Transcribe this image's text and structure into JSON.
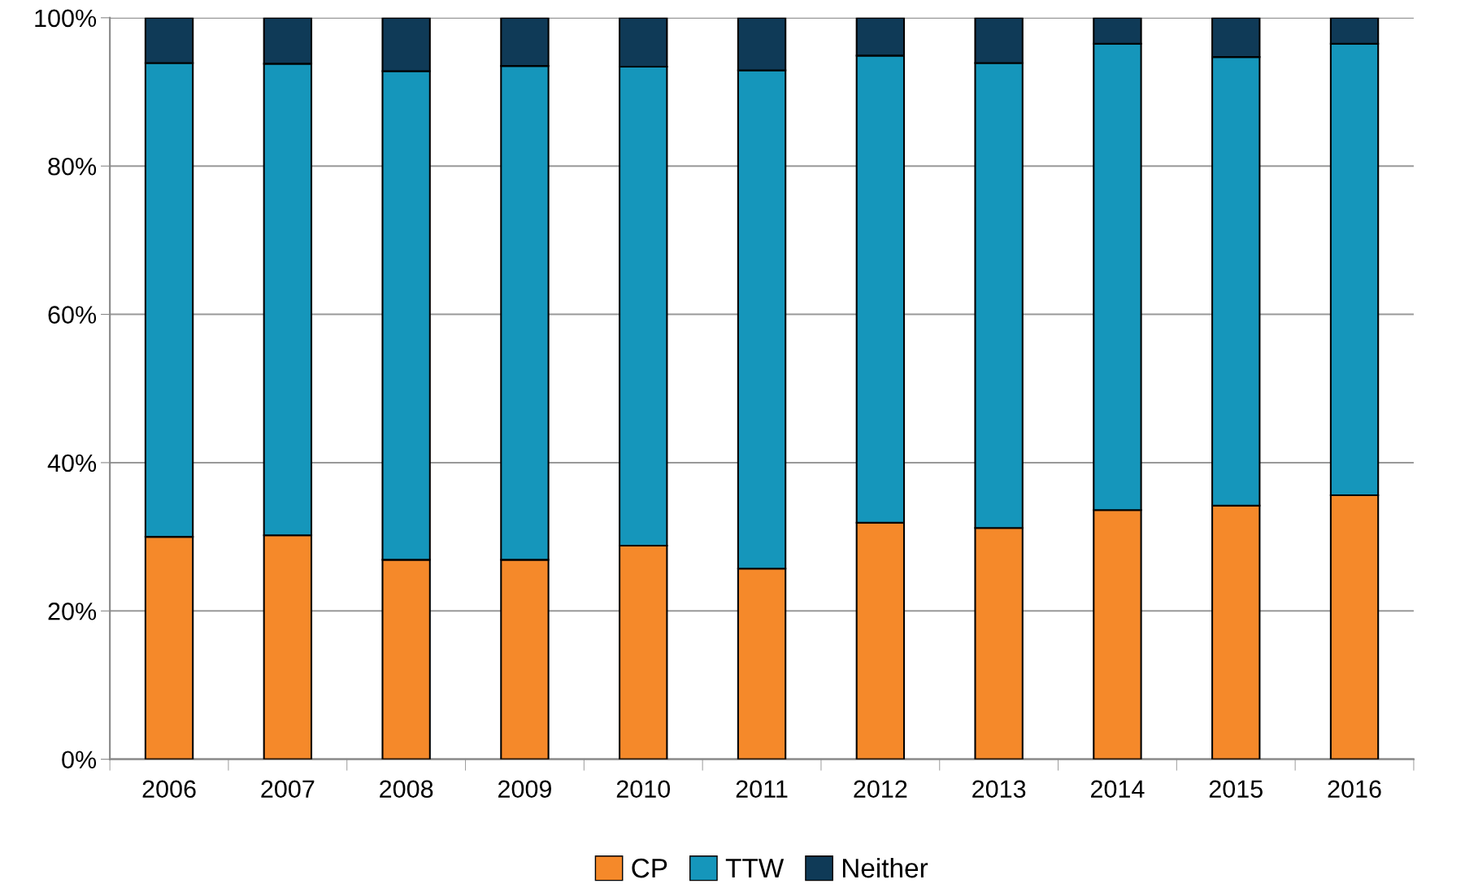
{
  "chart_data": {
    "type": "bar",
    "stacked": true,
    "categories": [
      "2006",
      "2007",
      "2008",
      "2009",
      "2010",
      "2011",
      "2012",
      "2013",
      "2014",
      "2015",
      "2016"
    ],
    "series": [
      {
        "name": "CP",
        "color": "#f5892a",
        "values": [
          30.0,
          30.2,
          26.9,
          26.9,
          28.8,
          25.7,
          31.9,
          31.2,
          33.6,
          34.2,
          35.6
        ]
      },
      {
        "name": "TTW",
        "color": "#1596bb",
        "values": [
          63.9,
          63.6,
          65.9,
          66.6,
          64.6,
          67.2,
          63.0,
          62.7,
          62.9,
          60.5,
          60.9
        ]
      },
      {
        "name": "Neither",
        "color": "#0f3a57",
        "values": [
          6.1,
          6.2,
          7.2,
          6.5,
          6.6,
          7.1,
          5.1,
          6.1,
          3.5,
          5.3,
          3.5
        ]
      }
    ],
    "ylim": [
      0,
      100
    ],
    "yticks": [
      {
        "value": 0,
        "label": "0%"
      },
      {
        "value": 20,
        "label": "20%"
      },
      {
        "value": 40,
        "label": "40%"
      },
      {
        "value": 60,
        "label": "60%"
      },
      {
        "value": 80,
        "label": "80%"
      },
      {
        "value": 100,
        "label": "100%"
      }
    ],
    "grid": "y",
    "legend": "bottom"
  }
}
